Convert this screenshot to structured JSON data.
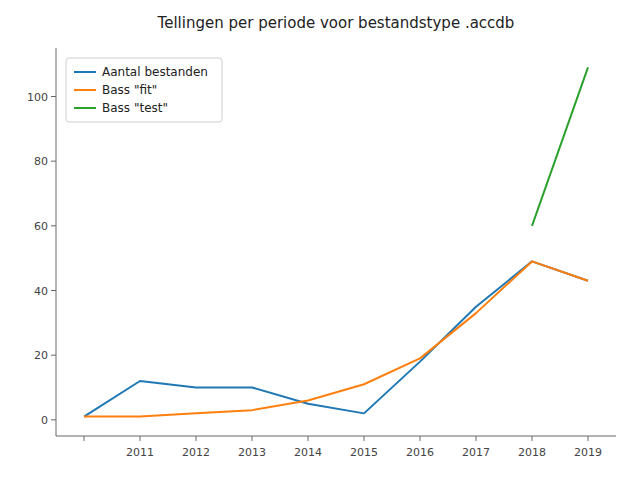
{
  "chart_data": {
    "type": "line",
    "title": "Tellingen per periode voor bestandstype .accdb",
    "series": [
      {
        "name": "Aantal bestanden",
        "color": "#1f77b4",
        "x": [
          2010,
          2011,
          2012,
          2013,
          2014,
          2015,
          2016,
          2017,
          2018,
          2019
        ],
        "values": [
          1,
          12,
          10,
          10,
          5,
          2,
          18,
          35,
          49,
          43
        ]
      },
      {
        "name": "Bass \"fit\"",
        "color": "#ff7f0e",
        "x": [
          2010,
          2011,
          2012,
          2013,
          2014,
          2015,
          2016,
          2017,
          2018,
          2019
        ],
        "values": [
          1,
          1,
          2,
          3,
          6,
          11,
          19,
          33,
          49,
          43
        ]
      },
      {
        "name": "Bass \"test\"",
        "color": "#2ca02c",
        "x": [
          2018,
          2019
        ],
        "values": [
          60,
          109
        ]
      }
    ],
    "xlim": [
      2009.5,
      2019.5
    ],
    "xticks": [
      {
        "value": 2010,
        "label": null
      },
      2011,
      2012,
      2013,
      2014,
      2015,
      2016,
      2017,
      2018,
      2019
    ],
    "ylim": [
      -5,
      115
    ],
    "yticks": [
      0,
      20,
      40,
      60,
      80,
      100
    ],
    "grid": false,
    "legend": "upper-left"
  }
}
